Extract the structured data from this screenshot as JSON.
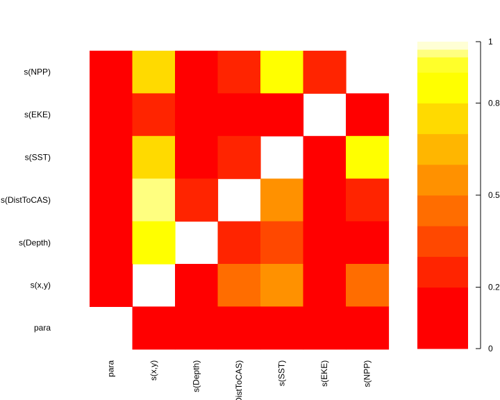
{
  "chart_data": {
    "type": "heatmap",
    "variables": [
      "para",
      "s(x,y)",
      "s(Depth)",
      "s(DistToCAS)",
      "s(SST)",
      "s(EKE)",
      "s(NPP)"
    ],
    "row_labels_top_to_bottom": [
      "s(NPP)",
      "s(EKE)",
      "s(SST)",
      "s(DistToCAS)",
      "s(Depth)",
      "s(x,y)",
      "para"
    ],
    "col_labels": [
      "para",
      "s(x,y)",
      "s(Depth)",
      "s(DistToCAS)",
      "s(SST)",
      "s(EKE)",
      "s(NPP)"
    ],
    "matrix_rows_top_to_bottom": [
      [
        0.05,
        0.78,
        0.13,
        0.22,
        0.8,
        0.22,
        null
      ],
      [
        0.05,
        0.22,
        0.05,
        0.05,
        0.13,
        null,
        0.05
      ],
      [
        0.05,
        0.78,
        0.05,
        0.22,
        null,
        0.13,
        0.8
      ],
      [
        0.05,
        0.95,
        0.22,
        null,
        0.5,
        0.05,
        0.22
      ],
      [
        0.05,
        0.88,
        null,
        0.22,
        0.3,
        0.05,
        0.13
      ],
      [
        0.05,
        null,
        0.13,
        0.4,
        0.5,
        0.05,
        0.4
      ],
      [
        null,
        0.05,
        0.05,
        0.05,
        0.05,
        0.05,
        0.05
      ]
    ],
    "colorbar": {
      "ticks": [
        "0",
        "0.2",
        "0.5",
        "0.8",
        "1"
      ],
      "tick_values": [
        0,
        0.2,
        0.5,
        0.8,
        1
      ],
      "segments": [
        {
          "from": 0.0,
          "to": 0.2,
          "color": "#FF0000"
        },
        {
          "from": 0.2,
          "to": 0.3,
          "color": "#FF2400"
        },
        {
          "from": 0.3,
          "to": 0.4,
          "color": "#FF4800"
        },
        {
          "from": 0.4,
          "to": 0.5,
          "color": "#FF6D00"
        },
        {
          "from": 0.5,
          "to": 0.6,
          "color": "#FF9100"
        },
        {
          "from": 0.6,
          "to": 0.7,
          "color": "#FFB600"
        },
        {
          "from": 0.7,
          "to": 0.8,
          "color": "#FFDA00"
        },
        {
          "from": 0.8,
          "to": 0.9,
          "color": "#FFFF00"
        },
        {
          "from": 0.9,
          "to": 0.95,
          "color": "#FFFF2A"
        },
        {
          "from": 0.95,
          "to": 0.975,
          "color": "#FFFF80"
        },
        {
          "from": 0.975,
          "to": 1.0,
          "color": "#FFFFD5"
        }
      ]
    },
    "title": "",
    "xlabel": "",
    "ylabel": ""
  }
}
